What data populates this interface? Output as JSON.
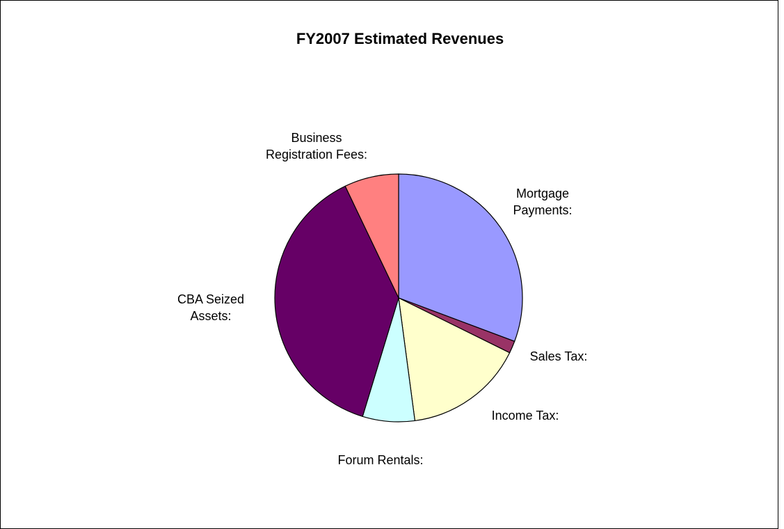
{
  "chart_data": {
    "type": "pie",
    "title": "FY2007 Estimated Revenues",
    "categories": [
      "Mortgage Payments:",
      "Sales Tax:",
      "Income Tax:",
      "Forum Rentals:",
      "CBA Seized Assets:",
      "Business Registration Fees:"
    ],
    "values": [
      30.7,
      1.6,
      15.6,
      6.8,
      38.2,
      7.1
    ],
    "colors": [
      "#9999ff",
      "#993366",
      "#ffffcc",
      "#ccffff",
      "#660066",
      "#ff8080"
    ]
  }
}
